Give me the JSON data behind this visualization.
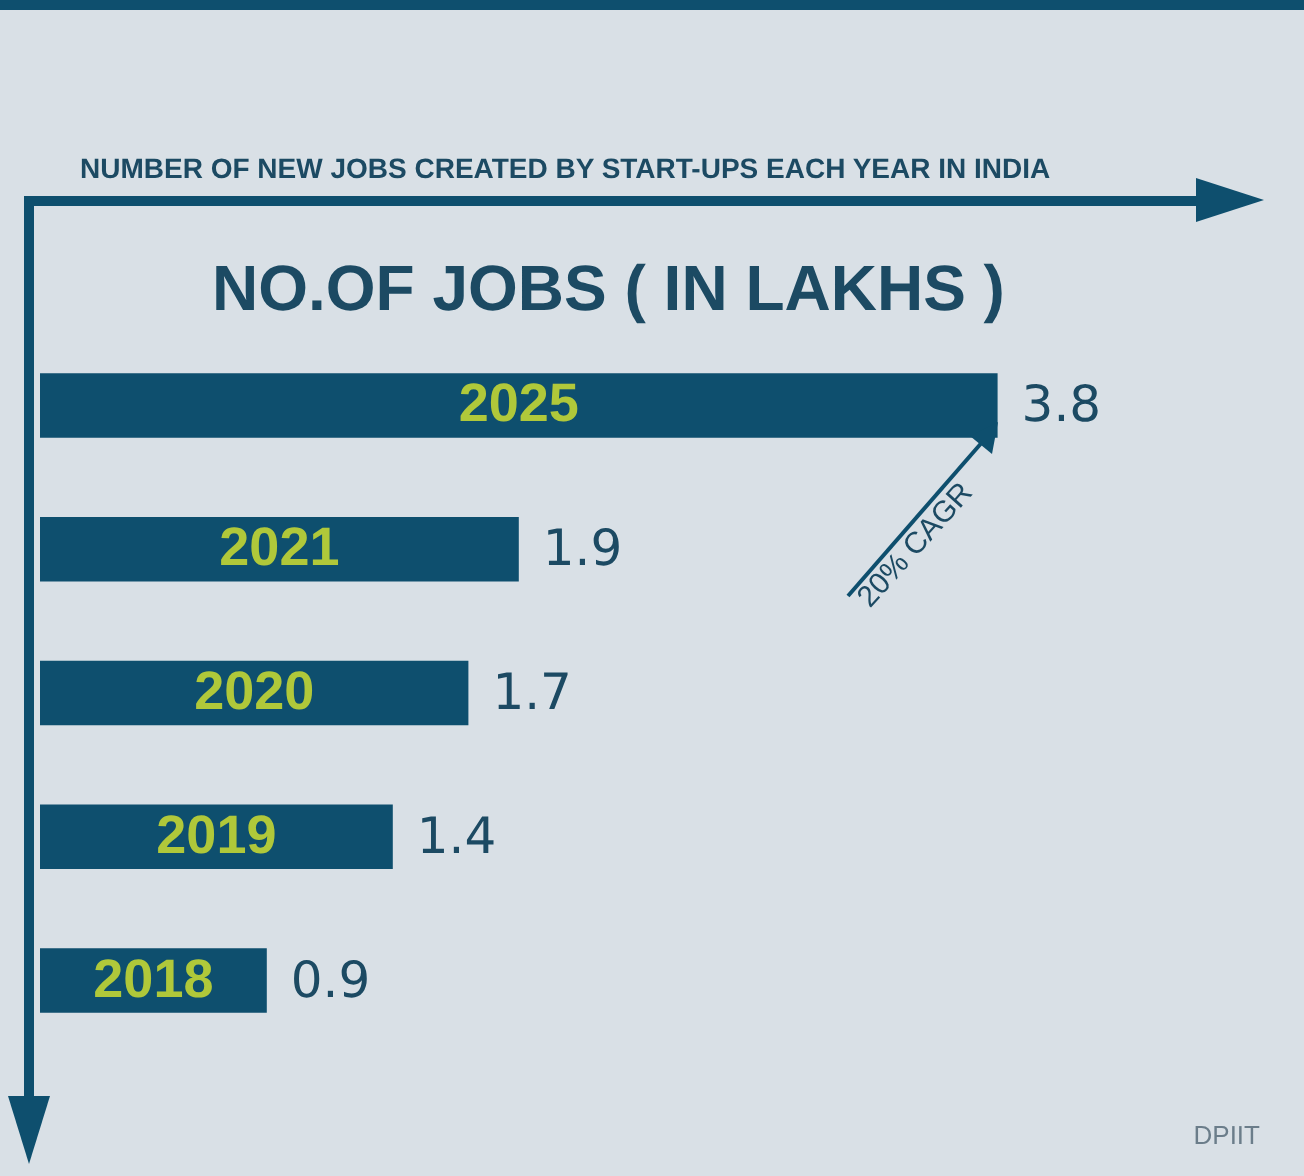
{
  "chart_data": {
    "type": "bar",
    "orientation": "horizontal",
    "title": "NUMBER OF NEW JOBS CREATED BY START-UPS EACH YEAR IN INDIA",
    "subtitle": "NO.OF JOBS ( IN LAKHS )",
    "categories": [
      "2025",
      "2021",
      "2020",
      "2019",
      "2018"
    ],
    "values": [
      3.8,
      1.9,
      1.7,
      1.4,
      0.9
    ],
    "color": "#0e4f6e",
    "data_labels": true,
    "annotations": [
      "20% CAGR",
      "DPIIT"
    ]
  }
}
